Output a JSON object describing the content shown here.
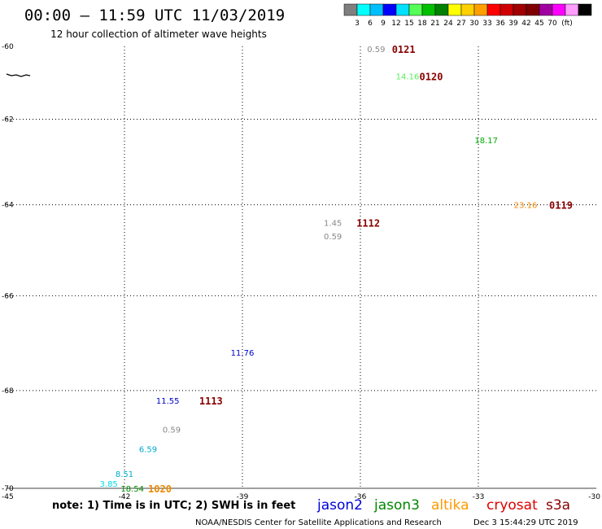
{
  "header": {
    "title": "00:00 – 11:59 UTC 11/03/2019",
    "subtitle": "12 hour collection of altimeter wave heights"
  },
  "colorbar": {
    "colors": [
      "#7f7f7f",
      "#00ffff",
      "#00bfff",
      "#0000ff",
      "#00e0ff",
      "#55ff55",
      "#00c000",
      "#008000",
      "#ffff00",
      "#ffd000",
      "#ffa000",
      "#ff0000",
      "#d00000",
      "#a00000",
      "#800000",
      "#a000a0",
      "#ff00ff",
      "#ff9cff",
      "#000000"
    ],
    "labels": [
      "3",
      "6",
      "9",
      "12",
      "15",
      "18",
      "21",
      "24",
      "27",
      "30",
      "33",
      "36",
      "39",
      "42",
      "45",
      "70",
      "(ft)"
    ]
  },
  "footer": {
    "note": "note: 1) Time is in UTC; 2) SWH is in feet",
    "credit": "NOAA/NESDIS Center for Satellite Applications and Research",
    "timestamp": "Dec  3 15:44:29 UTC 2019"
  },
  "legend": [
    {
      "name": "jason2",
      "color": "#0000dd"
    },
    {
      "name": "jason3",
      "color": "#008800"
    },
    {
      "name": "altika",
      "color": "#ff9900"
    },
    {
      "name": "cryosat",
      "color": "#dd0000"
    },
    {
      "name": "s3a",
      "color": "#880000"
    }
  ],
  "chart_data": {
    "type": "scatter",
    "xlim": [
      -45,
      -30
    ],
    "ylim": [
      -70,
      -60
    ],
    "xticks": [
      -45,
      -42,
      -39,
      -36,
      -33,
      -30
    ],
    "yticks": [
      -60,
      -62,
      -64,
      -66,
      -68,
      -70
    ],
    "grid": true,
    "wave_heights": [
      {
        "lon": -35.6,
        "lat": -60.1,
        "value": "0.59",
        "color": "#888888"
      },
      {
        "lon": -34.8,
        "lat": -60.9,
        "value": "14.16",
        "color": "#55ee55"
      },
      {
        "lon": -32.8,
        "lat": -62.5,
        "value": "18.17",
        "color": "#00aa00"
      },
      {
        "lon": -31.8,
        "lat": -64.0,
        "value": "23.16",
        "color": "#ee8800"
      },
      {
        "lon": -36.7,
        "lat": -64.4,
        "value": "1.45",
        "color": "#888888"
      },
      {
        "lon": -36.7,
        "lat": -64.7,
        "value": "0.59",
        "color": "#888888"
      },
      {
        "lon": -39.0,
        "lat": -67.2,
        "value": "11.76",
        "color": "#0000cc"
      },
      {
        "lon": -40.9,
        "lat": -68.2,
        "value": "11.55",
        "color": "#0000cc"
      },
      {
        "lon": -40.8,
        "lat": -68.8,
        "value": "0.59",
        "color": "#888888"
      },
      {
        "lon": -41.4,
        "lat": -69.2,
        "value": "6.59",
        "color": "#00aacc"
      },
      {
        "lon": -42.0,
        "lat": -69.7,
        "value": "8.51",
        "color": "#00aacc"
      },
      {
        "lon": -42.4,
        "lat": -69.9,
        "value": "3.85",
        "color": "#00ddee"
      },
      {
        "lon": -41.8,
        "lat": -70.0,
        "value": "18.54",
        "color": "#008800"
      }
    ],
    "pass_labels": [
      {
        "lon": -34.9,
        "lat": -60.1,
        "text": "0121",
        "color": "#880000"
      },
      {
        "lon": -34.2,
        "lat": -60.9,
        "text": "0120",
        "color": "#880000"
      },
      {
        "lon": -30.9,
        "lat": -64.0,
        "text": "0119",
        "color": "#880000"
      },
      {
        "lon": -35.8,
        "lat": -64.4,
        "text": "1112",
        "color": "#880000"
      },
      {
        "lon": -39.8,
        "lat": -68.2,
        "text": "1113",
        "color": "#880000"
      },
      {
        "lon": -41.1,
        "lat": -70.0,
        "text": "1020",
        "color": "#ee8800"
      }
    ]
  }
}
